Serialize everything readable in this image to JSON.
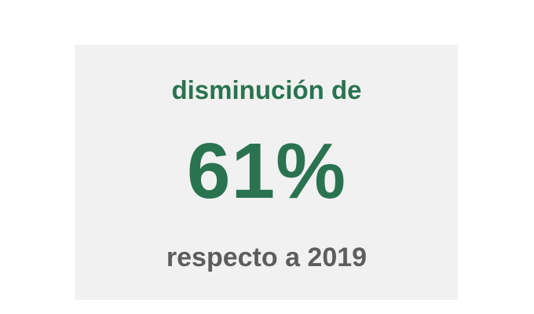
{
  "card": {
    "label": "disminución de",
    "value": "61%",
    "caption": "respecto a 2019"
  },
  "colors": {
    "accent": "#2a7350",
    "caption": "#5d5d5d",
    "card_background": "#f1f1f1",
    "page_background": "#ffffff"
  }
}
